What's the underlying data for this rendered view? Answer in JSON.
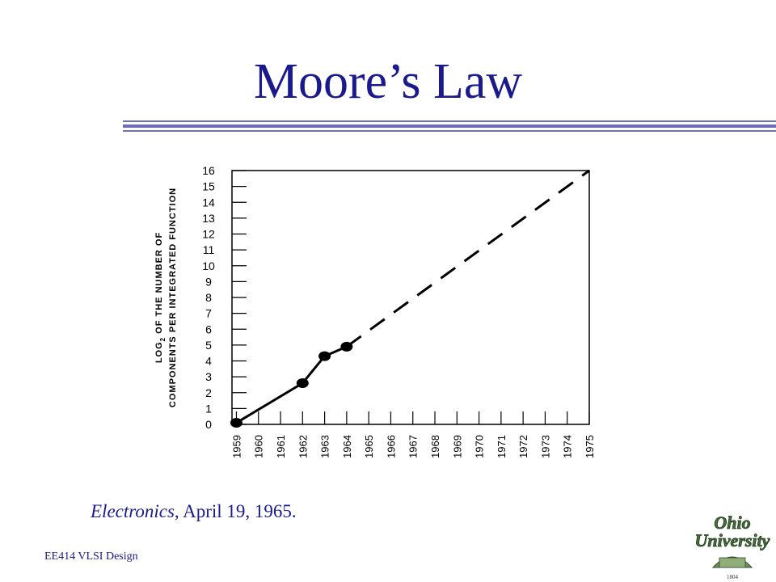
{
  "slide": {
    "title": "Moore’s Law",
    "caption_publication": "Electronics",
    "caption_date": ", April 19, 1965.",
    "footer": "EE414 VLSI Design",
    "logo_text_line1": "Ohio",
    "logo_text_line2": "University",
    "logo_year": "1804"
  },
  "chart_data": {
    "type": "line",
    "title": "",
    "ylabel_line1": "LOG",
    "ylabel_sub": "2",
    "ylabel_line1_rest": " OF THE NUMBER OF",
    "ylabel_line2": "COMPONENTS PER INTEGRATED FUNCTION",
    "xlabel": "",
    "x_ticks": [
      "1959",
      "1960",
      "1961",
      "1962",
      "1963",
      "1964",
      "1965",
      "1966",
      "1967",
      "1968",
      "1969",
      "1970",
      "1971",
      "1972",
      "1973",
      "1974",
      "1975"
    ],
    "y_ticks": [
      "0",
      "1",
      "2",
      "3",
      "4",
      "5",
      "6",
      "7",
      "8",
      "9",
      "10",
      "11",
      "12",
      "13",
      "14",
      "15",
      "16"
    ],
    "xlim": [
      1958.8,
      1975
    ],
    "ylim": [
      0,
      16
    ],
    "series": [
      {
        "style": "solid",
        "markers": true,
        "points": [
          [
            1959,
            0.1
          ],
          [
            1962,
            2.6
          ],
          [
            1963,
            4.3
          ],
          [
            1964,
            4.9
          ]
        ]
      },
      {
        "style": "dashed",
        "markers": false,
        "points": [
          [
            1964,
            4.9
          ],
          [
            1975,
            16
          ]
        ]
      }
    ]
  }
}
